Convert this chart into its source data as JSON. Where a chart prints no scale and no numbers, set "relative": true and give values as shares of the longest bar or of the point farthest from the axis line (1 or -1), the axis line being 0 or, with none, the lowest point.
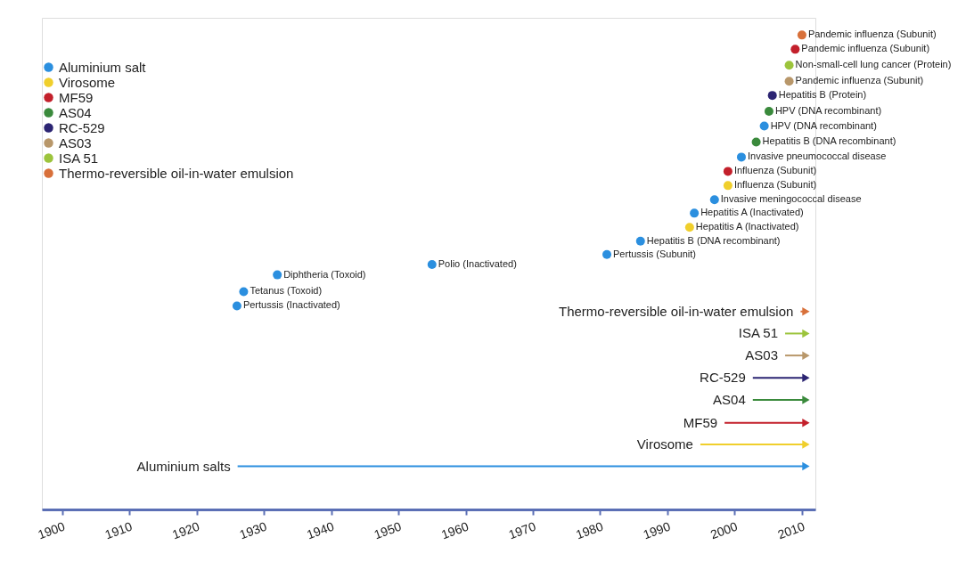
{
  "chart_data": {
    "type": "scatter",
    "relative": true,
    "xlim": [
      1897,
      2012
    ],
    "xticks": [
      1900,
      1910,
      1920,
      1930,
      1940,
      1950,
      1960,
      1970,
      1980,
      1990,
      2000,
      2010
    ],
    "grid": false,
    "legend": "top left",
    "marker": "circle",
    "series": [
      {
        "name": "Aluminium salt",
        "color": "#2b8fdf",
        "x": [
          1926,
          1927,
          1932,
          1955,
          1981,
          1986,
          1994,
          1997,
          2001,
          2004.4
        ],
        "values": [
          0.372,
          0.405,
          0.444,
          0.468,
          0.491,
          0.522,
          0.587,
          0.618,
          0.717,
          0.789
        ]
      },
      {
        "name": "Virosome",
        "color": "#f0cf2c",
        "x": [
          1993.3,
          1999
        ],
        "values": [
          0.554,
          0.651
        ]
      },
      {
        "name": "MF59",
        "color": "#c3202b",
        "x": [
          1999,
          2009
        ],
        "values": [
          0.684,
          0.967
        ]
      },
      {
        "name": "AS04",
        "color": "#3a8a3c",
        "x": [
          2003.2,
          2005.1
        ],
        "values": [
          0.752,
          0.823
        ]
      },
      {
        "name": "RC-529",
        "color": "#2b2472",
        "x": [
          2005.6
        ],
        "values": [
          0.86
        ]
      },
      {
        "name": "AS03",
        "color": "#b8976a",
        "x": [
          2008.1
        ],
        "values": [
          0.893
        ]
      },
      {
        "name": "ISA 51",
        "color": "#9cc43c",
        "x": [
          2008.1
        ],
        "values": [
          0.93
        ]
      },
      {
        "name": "Thermo-reversible oil-in-water emulsion",
        "color": "#d8703a",
        "x": [
          2010
        ],
        "values": [
          1.0
        ]
      },
      {
        "type": "line",
        "name": "Aluminium salts",
        "color": "#2b8fdf",
        "x": [
          1926.1,
          2010.6
        ],
        "values": [
          0,
          0
        ],
        "marker": "triangle"
      },
      {
        "type": "line",
        "name": "Virosome",
        "color": "#f0cf2c",
        "x": [
          1994.9,
          2010.6
        ],
        "values": [
          0.051,
          0.051
        ],
        "marker": "triangle"
      },
      {
        "type": "line",
        "name": "MF59",
        "color": "#c3202b",
        "x": [
          1998.5,
          2010.6
        ],
        "values": [
          0.101,
          0.101
        ],
        "marker": "triangle"
      },
      {
        "type": "line",
        "name": "AS04",
        "color": "#3a8a3c",
        "x": [
          2002.7,
          2010.6
        ],
        "values": [
          0.154,
          0.154
        ],
        "marker": "triangle"
      },
      {
        "type": "line",
        "name": "RC-529",
        "color": "#2b2472",
        "x": [
          2002.7,
          2010.6
        ],
        "values": [
          0.205,
          0.205
        ],
        "marker": "triangle"
      },
      {
        "type": "line",
        "name": "AS03",
        "color": "#b8976a",
        "x": [
          2007.5,
          2010.6
        ],
        "values": [
          0.257,
          0.257
        ],
        "marker": "triangle"
      },
      {
        "type": "line",
        "name": "ISA 51",
        "color": "#9cc43c",
        "x": [
          2007.5,
          2010.6
        ],
        "values": [
          0.308,
          0.308
        ],
        "marker": "triangle"
      },
      {
        "type": "line",
        "name": "Thermo-reversible oil-in-water emulsion",
        "color": "#d8703a",
        "x": [
          2009.8,
          2010.6
        ],
        "values": [
          0.359,
          0.359
        ],
        "marker": "triangle"
      }
    ],
    "annotations": [
      {
        "text": "Pertussis (Inactivated)",
        "x": 1926,
        "y": 0.372
      },
      {
        "text": "Tetanus (Toxoid)",
        "x": 1927,
        "y": 0.405
      },
      {
        "text": "Diphtheria (Toxoid)",
        "x": 1932,
        "y": 0.444
      },
      {
        "text": "Polio (Inactivated)",
        "x": 1955,
        "y": 0.468
      },
      {
        "text": "Pertussis (Subunit)",
        "x": 1981,
        "y": 0.491
      },
      {
        "text": "Hepatitis B (DNA recombinant)",
        "x": 1986,
        "y": 0.522
      },
      {
        "text": "Hepatitis A (Inactivated)",
        "x": 1993.3,
        "y": 0.554
      },
      {
        "text": "Hepatitis A (Inactivated)",
        "x": 1994,
        "y": 0.587
      },
      {
        "text": "Invasive meningococcal disease",
        "x": 1997,
        "y": 0.618
      },
      {
        "text": "Influenza (Subunit)",
        "x": 1999,
        "y": 0.651
      },
      {
        "text": "Influenza (Subunit)",
        "x": 1999,
        "y": 0.684
      },
      {
        "text": "Invasive pneumococcal disease",
        "x": 2001,
        "y": 0.717
      },
      {
        "text": "Hepatitis B (DNA recombinant)",
        "x": 2003.2,
        "y": 0.752
      },
      {
        "text": "HPV (DNA recombinant)",
        "x": 2004.4,
        "y": 0.789
      },
      {
        "text": "HPV (DNA recombinant)",
        "x": 2005.1,
        "y": 0.823
      },
      {
        "text": "Hepatitis B (Protein)",
        "x": 2005.6,
        "y": 0.86
      },
      {
        "text": "Pandemic influenza (Subunit)",
        "x": 2008.1,
        "y": 0.893
      },
      {
        "text": "Non-small-cell lung cancer (Protein)",
        "x": 2008.1,
        "y": 0.93
      },
      {
        "text": "Pandemic influenza (Subunit)",
        "x": 2009,
        "y": 0.967
      },
      {
        "text": "Pandemic influenza (Subunit)",
        "x": 2010,
        "y": 1.0
      }
    ]
  }
}
